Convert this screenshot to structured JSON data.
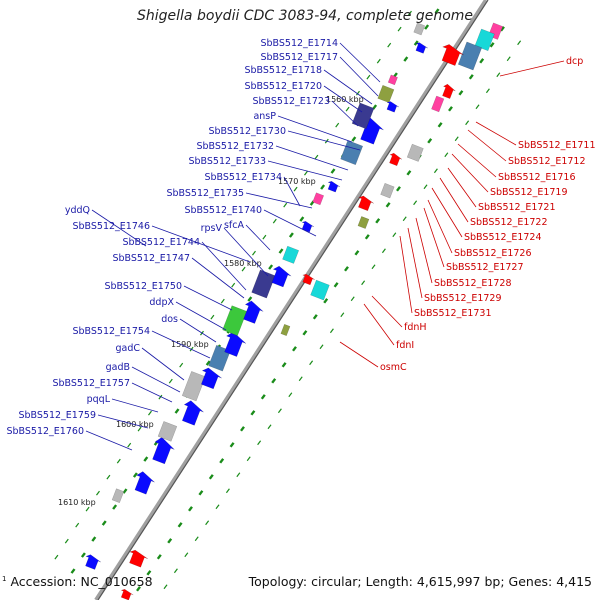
{
  "title": "Shigella boydii CDC 3083-94, complete genome",
  "footer": {
    "marker": "1",
    "accession": "Accession: NC_010658",
    "info": "Topology: circular; Length: 4,615,997 bp; Genes: 4,415"
  },
  "colors": {
    "backbone": "#888888",
    "left_labels": "#1a1aa6",
    "right_labels": "#cc0000",
    "forward_gene": "#0a0aff",
    "reverse_gene": "#ff0000",
    "tick": "#1a8c1a",
    "cyan_feature": "#18d8d8",
    "steel_feature": "#4a7fb0",
    "navy_feature": "#3a3a90",
    "green_feature": "#3cc83c",
    "olive_feature": "#8ea040",
    "pink_feature": "#ff40a0",
    "grey_feature": "#b8b8b8"
  },
  "ruler": [
    "1560 kbp",
    "1570 kbp",
    "1580 kbp",
    "1590 kbp",
    "1600 kbp",
    "1610 kbp"
  ],
  "left_labels": [
    "SbBS512_E1714",
    "SbBS512_E1717",
    "SbBS512_E1718",
    "SbBS512_E1720",
    "SbBS512_E1723",
    "ansP",
    "SbBS512_E1730",
    "SbBS512_E1732",
    "SbBS512_E1733",
    "SbBS512_E1734",
    "SbBS512_E1735",
    "SbBS512_E1740",
    "yddQ",
    "SbBS512_E1746",
    "rpsV",
    "sfcA",
    "SbBS512_E1744",
    "SbBS512_E1747",
    "SbBS512_E1750",
    "ddpX",
    "dos",
    "SbBS512_E1754",
    "gadC",
    "gadB",
    "SbBS512_E1757",
    "pqqL",
    "SbBS512_E1759",
    "SbBS512_E1760"
  ],
  "right_labels": [
    "dcp",
    "SbBS512_E1711",
    "SbBS512_E1712",
    "SbBS512_E1716",
    "SbBS512_E1719",
    "SbBS512_E1721",
    "SbBS512_E1722",
    "SbBS512_E1724",
    "SbBS512_E1726",
    "SbBS512_E1727",
    "SbBS512_E1728",
    "SbBS512_E1729",
    "SbBS512_E1731",
    "fdnH",
    "fdnI",
    "osmC"
  ]
}
